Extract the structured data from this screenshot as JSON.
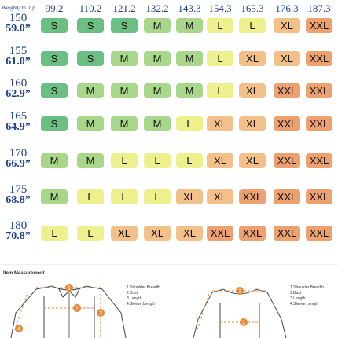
{
  "header": {
    "corner_label": "Weight(cm.In)\\",
    "weights": [
      "99.2",
      "110.2",
      "121.2",
      "132.2",
      "143.3",
      "154.3",
      "165.3",
      "176.3",
      "187.3"
    ]
  },
  "rows": [
    {
      "cm": "150",
      "in": "59.0”",
      "sizes": [
        "S",
        "S",
        "S",
        "M",
        "M",
        "L",
        "L",
        "XL",
        "XXL"
      ]
    },
    {
      "cm": "155",
      "in": "61.0”",
      "sizes": [
        "S",
        "S",
        "M",
        "M",
        "M",
        "L",
        "XL",
        "XL",
        "XXL"
      ]
    },
    {
      "cm": "160",
      "in": "62.9”",
      "sizes": [
        "S",
        "M",
        "M",
        "M",
        "M",
        "L",
        "XL",
        "XXL",
        "XXL"
      ]
    },
    {
      "cm": "165",
      "in": "64.9”",
      "sizes": [
        "S",
        "M",
        "M",
        "M",
        "L",
        "XL",
        "XL",
        "XXL",
        "XXL"
      ]
    },
    {
      "cm": "170",
      "in": "66.9”",
      "sizes": [
        "M",
        "M",
        "L",
        "L",
        "L",
        "XL",
        "XL",
        "XXL",
        "XXL"
      ]
    },
    {
      "cm": "175",
      "in": "68.8”",
      "sizes": [
        "M",
        "L",
        "L",
        "L",
        "XL",
        "XL",
        "XXL",
        "XXL",
        "XXL"
      ]
    },
    {
      "cm": "180",
      "in": "70.8”",
      "sizes": [
        "L",
        "L",
        "XL",
        "XL",
        "XL",
        "XXL",
        "XXL",
        "XXL",
        "XXL"
      ]
    }
  ],
  "size_colors": {
    "S": "#6cbf82",
    "M": "#a8d68a",
    "L": "#eef08e",
    "XL": "#f4c08a",
    "XXL": "#eda070"
  },
  "measurement": {
    "title": "Item Measurement",
    "legend_left": [
      "1.Shoulder Breadth",
      "2.Bust",
      "3.Length",
      "4.Sleeve Length"
    ],
    "legend_right": [
      "1.Shoulder Breadth",
      "2.Bust",
      "3.Length",
      "4.Sleeve Length"
    ],
    "markers_left": [
      "1",
      "2",
      "3",
      "4"
    ],
    "markers_right": [
      "1",
      "2"
    ],
    "accent_color": "#e8893a"
  }
}
